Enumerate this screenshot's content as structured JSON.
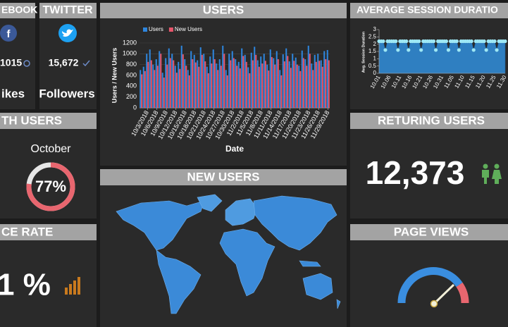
{
  "facebook": {
    "title": "EBOOK",
    "count": "1015",
    "label": "ikes"
  },
  "twitter": {
    "title": "TWITTER",
    "count": "15,672",
    "label": "Followers"
  },
  "month_users": {
    "title": "TH USERS",
    "month": "October",
    "value": 77,
    "value_label": "77%"
  },
  "bounce_rate": {
    "title": "CE RATE",
    "value": "1 %"
  },
  "returning_users": {
    "title": "RETURING USERS",
    "value": "12,373"
  },
  "page_views": {
    "title": "PAGE VIEWS"
  },
  "new_users": {
    "title": "NEW USERS"
  },
  "chart_data": [
    {
      "type": "bar",
      "title": "USERS",
      "xlabel": "Date",
      "ylabel": "Users / New Users",
      "categories": [
        null,
        null,
        "10/3/2018",
        null,
        null,
        "10/6/2018",
        null,
        null,
        "10/9/2018",
        null,
        null,
        "10/12/2018",
        null,
        null,
        "10/15/2018",
        null,
        null,
        "10/18/2018",
        null,
        null,
        "10/21/2018",
        null,
        null,
        "10/24/2018",
        null,
        null,
        "10/27/2018",
        null,
        null,
        "10/30/2018",
        null,
        null,
        "11/2/2018",
        null,
        null,
        "11/5/2018",
        null,
        null,
        "11/8/2018",
        null,
        null,
        "11/11/2018",
        null,
        null,
        "11/14/2018",
        null,
        null,
        "11/17/2018",
        null,
        null,
        "11/20/2018",
        null,
        null,
        "11/23/2018",
        null,
        null,
        "11/26/2018",
        null,
        null,
        "11/29/2018"
      ],
      "series": [
        {
          "name": "Users",
          "color": "#2e86de",
          "values": [
            700,
            760,
            1000,
            1080,
            800,
            900,
            1050,
            650,
            920,
            1100,
            1000,
            780,
            850,
            1150,
            900,
            700,
            1050,
            980,
            880,
            1120,
            1000,
            760,
            950,
            1080,
            820,
            900,
            1150,
            700,
            1000,
            1050,
            900,
            850,
            1100,
            980,
            750,
            1020,
            1130,
            880,
            950,
            1000,
            800,
            1080,
            920,
            1050,
            700,
            990,
            1100,
            860,
            1000,
            930,
            780,
            1060,
            900,
            1150,
            820,
            980,
            1000,
            880,
            1050,
            1070
          ]
        },
        {
          "name": "New Users",
          "color": "#e8566c",
          "values": [
            620,
            680,
            850,
            880,
            700,
            780,
            1000,
            560,
            800,
            920,
            880,
            650,
            720,
            990,
            780,
            600,
            900,
            840,
            760,
            980,
            860,
            640,
            820,
            900,
            700,
            780,
            1000,
            600,
            880,
            920,
            780,
            730,
            960,
            850,
            640,
            880,
            980,
            760,
            820,
            870,
            690,
            940,
            800,
            900,
            600,
            860,
            960,
            740,
            870,
            800,
            680,
            920,
            780,
            1000,
            700,
            850,
            870,
            760,
            900,
            880
          ]
        }
      ],
      "ylim": [
        0,
        1200
      ],
      "yticks": [
        0,
        200,
        400,
        600,
        800,
        1000,
        1200
      ],
      "grid": true,
      "legend": "top-left"
    },
    {
      "type": "area",
      "title": "AVERAGE SESSION DURATIO",
      "ylabel": "Avg. Session Duration",
      "categories": [
        "10.01",
        null,
        null,
        null,
        null,
        "10.06",
        null,
        null,
        null,
        null,
        "10.11",
        null,
        null,
        null,
        null,
        "10.16",
        null,
        null,
        null,
        null,
        "10.21",
        null,
        null,
        null,
        null,
        "10.26",
        null,
        null,
        null,
        null,
        "10.31",
        null,
        null,
        null,
        null,
        "11.05",
        null,
        null,
        null,
        null,
        "11.10",
        null,
        null,
        null,
        null,
        "11.15",
        null,
        null,
        null,
        null,
        "11.20",
        null,
        null,
        null,
        null,
        "11.25",
        null,
        null,
        null,
        null,
        "11.30"
      ],
      "values": [
        2.2,
        2.2,
        2.2,
        1.6,
        2.2,
        2.2,
        2.2,
        2.2,
        2.2,
        1.6,
        2.2,
        2.2,
        2.2,
        2.2,
        1.6,
        2.2,
        2.2,
        2.2,
        2.2,
        2.2,
        1.6,
        2.2,
        2.2,
        2.2,
        2.2,
        2.2,
        2.2,
        1.6,
        2.2,
        2.2,
        2.2,
        2.2,
        2.2,
        1.6,
        2.2,
        2.2,
        2.2,
        2.2,
        1.6,
        2.2,
        2.2,
        2.2,
        2.2,
        2.2,
        2.2,
        1.6,
        2.2,
        2.2,
        2.2,
        2.2,
        2.2,
        1.6,
        2.2,
        2.2,
        2.2,
        2.2,
        1.6,
        2.2,
        2.2,
        2.2,
        2.2
      ],
      "color": "#2f7fc1",
      "marker_color": "#9fe8f5",
      "ylim": [
        0,
        3
      ],
      "yticks": [
        0,
        0.5,
        1,
        1.5,
        2,
        2.5,
        3
      ]
    }
  ]
}
